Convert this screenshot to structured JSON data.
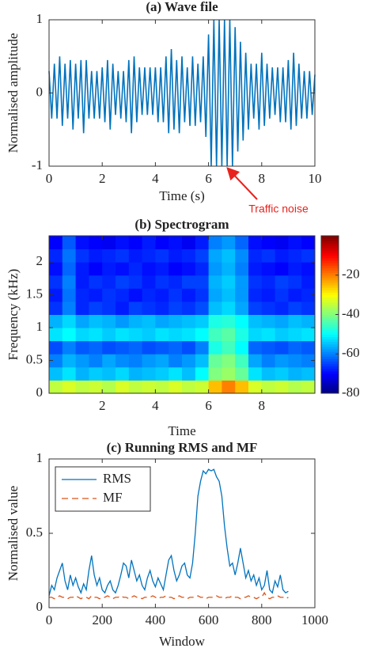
{
  "chart_data": [
    {
      "type": "line",
      "title": "(a) Wave file",
      "xlabel": "Time (s)",
      "ylabel": "Normalised amplitude",
      "x": [
        0,
        0.1,
        0.2,
        0.3,
        0.4,
        0.5,
        0.6,
        0.7,
        0.8,
        0.9,
        1,
        1.1,
        1.2,
        1.3,
        1.4,
        1.5,
        1.6,
        1.7,
        1.8,
        1.9,
        2,
        2.1,
        2.2,
        2.3,
        2.4,
        2.5,
        2.6,
        2.7,
        2.8,
        2.9,
        3,
        3.1,
        3.2,
        3.3,
        3.4,
        3.5,
        3.6,
        3.7,
        3.8,
        3.9,
        4,
        4.1,
        4.2,
        4.3,
        4.4,
        4.5,
        4.6,
        4.7,
        4.8,
        4.9,
        5,
        5.1,
        5.2,
        5.3,
        5.4,
        5.5,
        5.6,
        5.7,
        5.8,
        5.9,
        6,
        6.1,
        6.2,
        6.3,
        6.4,
        6.5,
        6.6,
        6.7,
        6.8,
        6.9,
        7,
        7.1,
        7.2,
        7.3,
        7.4,
        7.5,
        7.6,
        7.7,
        7.8,
        7.9,
        8,
        8.1,
        8.2,
        8.3,
        8.4,
        8.5,
        8.6,
        8.7,
        8.8,
        8.9,
        9,
        9.1,
        9.2,
        9.3,
        9.4,
        9.5,
        9.6,
        9.7,
        9.8,
        9.9,
        10
      ],
      "series": [
        {
          "color": "#0072bd",
          "values": [
            0.3,
            -0.35,
            0.4,
            -0.35,
            0.5,
            -0.45,
            0.4,
            -0.35,
            0.45,
            -0.5,
            0.4,
            -0.35,
            0.45,
            -0.55,
            0.45,
            -0.35,
            0.3,
            -0.35,
            0.3,
            -0.35,
            0.35,
            -0.4,
            0.45,
            -0.5,
            0.4,
            -0.3,
            0.3,
            -0.35,
            0.3,
            -0.4,
            0.45,
            -0.55,
            0.5,
            -0.4,
            0.35,
            -0.3,
            0.35,
            -0.3,
            0.35,
            -0.3,
            0.35,
            -0.4,
            0.35,
            -0.4,
            0.5,
            -0.55,
            0.6,
            -0.5,
            0.45,
            -0.55,
            0.5,
            -0.4,
            0.35,
            -0.45,
            0.5,
            -0.45,
            0.4,
            -0.4,
            0.5,
            -0.6,
            0.8,
            -1,
            1,
            -1,
            1,
            -1,
            1,
            -1,
            1,
            -1,
            0.9,
            -0.8,
            0.7,
            -0.65,
            0.55,
            -0.5,
            0.4,
            -0.35,
            0.4,
            -0.5,
            0.55,
            -0.45,
            0.4,
            -0.35,
            0.35,
            -0.3,
            0.35,
            -0.4,
            0.35,
            -0.4,
            0.45,
            -0.5,
            0.55,
            -0.45,
            0.4,
            -0.35,
            0.3,
            -0.35,
            0.3,
            -0.3,
            0.25
          ]
        }
      ],
      "xlim": [
        0,
        10
      ],
      "ylim": [
        -1,
        1
      ],
      "xticks": [
        0,
        2,
        4,
        6,
        8,
        10
      ],
      "yticks": [
        -1,
        0,
        1
      ],
      "annotation": "Traffic noise",
      "annotation_color": "#e8231e"
    },
    {
      "type": "heatmap",
      "title": "(b) Spectrogram",
      "xlabel": "Time",
      "ylabel": "Frequency (kHz)",
      "xedges": [
        0,
        0.5,
        1,
        1.5,
        2,
        2.5,
        3,
        3.5,
        4,
        4.5,
        5,
        5.5,
        6,
        6.5,
        7,
        7.5,
        8,
        8.5,
        9,
        9.5,
        10
      ],
      "yedges": [
        0,
        0.2,
        0.4,
        0.6,
        0.8,
        1,
        1.2,
        1.4,
        1.6,
        1.8,
        2,
        2.2,
        2.4
      ],
      "z": [
        [
          -35,
          -33,
          -35,
          -34,
          -36,
          -33,
          -35,
          -34,
          -35,
          -33,
          -35,
          -34,
          -25,
          -20,
          -25,
          -33,
          -35,
          -34,
          -36,
          -35
        ],
        [
          -55,
          -52,
          -56,
          -54,
          -55,
          -53,
          -56,
          -55,
          -54,
          -52,
          -55,
          -50,
          -40,
          -38,
          -42,
          -52,
          -55,
          -54,
          -56,
          -55
        ],
        [
          -60,
          -56,
          -58,
          -60,
          -57,
          -59,
          -60,
          -58,
          -57,
          -60,
          -58,
          -55,
          -42,
          -40,
          -45,
          -57,
          -60,
          -58,
          -59,
          -60
        ],
        [
          -64,
          -60,
          -63,
          -62,
          -64,
          -63,
          -62,
          -64,
          -63,
          -62,
          -64,
          -60,
          -48,
          -45,
          -50,
          -62,
          -63,
          -64,
          -62,
          -63
        ],
        [
          -52,
          -50,
          -53,
          -52,
          -54,
          -52,
          -53,
          -54,
          -52,
          -53,
          -52,
          -50,
          -45,
          -43,
          -48,
          -53,
          -52,
          -54,
          -53,
          -52
        ],
        [
          -56,
          -53,
          -57,
          -55,
          -56,
          -58,
          -56,
          -55,
          -57,
          -56,
          -55,
          -54,
          -48,
          -47,
          -50,
          -55,
          -56,
          -57,
          -55,
          -56
        ],
        [
          -66,
          -60,
          -67,
          -65,
          -66,
          -68,
          -65,
          -66,
          -67,
          -65,
          -66,
          -64,
          -55,
          -53,
          -57,
          -65,
          -66,
          -67,
          -65,
          -66
        ],
        [
          -68,
          -61,
          -67,
          -68,
          -66,
          -67,
          -69,
          -67,
          -68,
          -66,
          -68,
          -66,
          -57,
          -55,
          -58,
          -67,
          -68,
          -66,
          -68,
          -67
        ],
        [
          -66,
          -60,
          -68,
          -66,
          -67,
          -65,
          -66,
          -68,
          -66,
          -67,
          -65,
          -65,
          -56,
          -54,
          -58,
          -66,
          -67,
          -65,
          -66,
          -68
        ],
        [
          -69,
          -62,
          -68,
          -70,
          -68,
          -69,
          -67,
          -69,
          -68,
          -70,
          -69,
          -67,
          -58,
          -56,
          -60,
          -68,
          -69,
          -70,
          -68,
          -69
        ],
        [
          -67,
          -61,
          -66,
          -68,
          -67,
          -66,
          -68,
          -67,
          -66,
          -68,
          -67,
          -65,
          -57,
          -55,
          -59,
          -67,
          -66,
          -68,
          -67,
          -66
        ],
        [
          -70,
          -63,
          -69,
          -70,
          -71,
          -69,
          -70,
          -68,
          -70,
          -69,
          -71,
          -68,
          -60,
          -58,
          -62,
          -69,
          -70,
          -71,
          -69,
          -70
        ]
      ],
      "xlim": [
        0,
        10
      ],
      "ylim": [
        0,
        2.4
      ],
      "xticks": [
        2,
        4,
        6,
        8
      ],
      "yticks": [
        0,
        0.5,
        1,
        1.5,
        2
      ],
      "clim": [
        -80,
        0
      ],
      "cticks": [
        -80,
        -60,
        -40,
        -20
      ],
      "colormap": "jet"
    },
    {
      "type": "line",
      "title": "(c) Running RMS and MF",
      "xlabel": "Window",
      "ylabel": "Normalised value",
      "x": [
        0,
        10,
        20,
        30,
        40,
        50,
        60,
        70,
        80,
        90,
        100,
        110,
        120,
        130,
        140,
        150,
        160,
        170,
        180,
        190,
        200,
        210,
        220,
        230,
        240,
        250,
        260,
        270,
        280,
        290,
        300,
        310,
        320,
        330,
        340,
        350,
        360,
        370,
        380,
        390,
        400,
        410,
        420,
        430,
        440,
        450,
        460,
        470,
        480,
        490,
        500,
        510,
        520,
        530,
        540,
        550,
        560,
        570,
        580,
        590,
        600,
        610,
        620,
        630,
        640,
        650,
        660,
        670,
        680,
        690,
        700,
        710,
        720,
        730,
        740,
        750,
        760,
        770,
        780,
        790,
        800,
        810,
        820,
        830,
        840,
        850,
        860,
        870,
        880,
        890,
        900
      ],
      "series": [
        {
          "name": "RMS",
          "color": "#0072bd",
          "dash": false,
          "values": [
            0.08,
            0.15,
            0.12,
            0.2,
            0.25,
            0.3,
            0.18,
            0.12,
            0.22,
            0.15,
            0.2,
            0.14,
            0.1,
            0.16,
            0.12,
            0.25,
            0.35,
            0.22,
            0.15,
            0.2,
            0.12,
            0.1,
            0.15,
            0.18,
            0.12,
            0.1,
            0.15,
            0.22,
            0.3,
            0.28,
            0.2,
            0.32,
            0.25,
            0.18,
            0.22,
            0.15,
            0.12,
            0.2,
            0.25,
            0.18,
            0.14,
            0.2,
            0.16,
            0.12,
            0.22,
            0.32,
            0.35,
            0.25,
            0.18,
            0.22,
            0.28,
            0.3,
            0.22,
            0.2,
            0.3,
            0.5,
            0.75,
            0.85,
            0.92,
            0.9,
            0.93,
            0.92,
            0.93,
            0.88,
            0.85,
            0.75,
            0.55,
            0.4,
            0.28,
            0.3,
            0.22,
            0.3,
            0.4,
            0.3,
            0.2,
            0.25,
            0.18,
            0.22,
            0.15,
            0.2,
            0.12,
            0.15,
            0.25,
            0.12,
            0.1,
            0.18,
            0.14,
            0.22,
            0.12,
            0.1,
            0.11
          ]
        },
        {
          "name": "MF",
          "color": "#d95319",
          "dash": true,
          "values": [
            0.07,
            0.07,
            0.06,
            0.07,
            0.08,
            0.07,
            0.07,
            0.06,
            0.07,
            0.07,
            0.08,
            0.07,
            0.06,
            0.07,
            0.07,
            0.06,
            0.08,
            0.07,
            0.07,
            0.06,
            0.07,
            0.07,
            0.08,
            0.07,
            0.06,
            0.07,
            0.07,
            0.08,
            0.07,
            0.07,
            0.06,
            0.07,
            0.08,
            0.07,
            0.07,
            0.06,
            0.07,
            0.07,
            0.07,
            0.08,
            0.07,
            0.06,
            0.07,
            0.07,
            0.08,
            0.07,
            0.07,
            0.06,
            0.07,
            0.08,
            0.07,
            0.07,
            0.06,
            0.07,
            0.07,
            0.07,
            0.08,
            0.07,
            0.07,
            0.06,
            0.07,
            0.07,
            0.07,
            0.08,
            0.07,
            0.07,
            0.06,
            0.07,
            0.07,
            0.08,
            0.07,
            0.07,
            0.06,
            0.07,
            0.07,
            0.08,
            0.07,
            0.07,
            0.06,
            0.07,
            0.07,
            0.1,
            0.07,
            0.06,
            0.07,
            0.07,
            0.08,
            0.07,
            0.07,
            0.06,
            0.07
          ]
        }
      ],
      "xlim": [
        0,
        1000
      ],
      "ylim": [
        0,
        1
      ],
      "xticks": [
        0,
        200,
        400,
        600,
        800,
        1000
      ],
      "yticks": [
        0,
        0.5,
        1
      ],
      "legend": "upper left"
    }
  ]
}
